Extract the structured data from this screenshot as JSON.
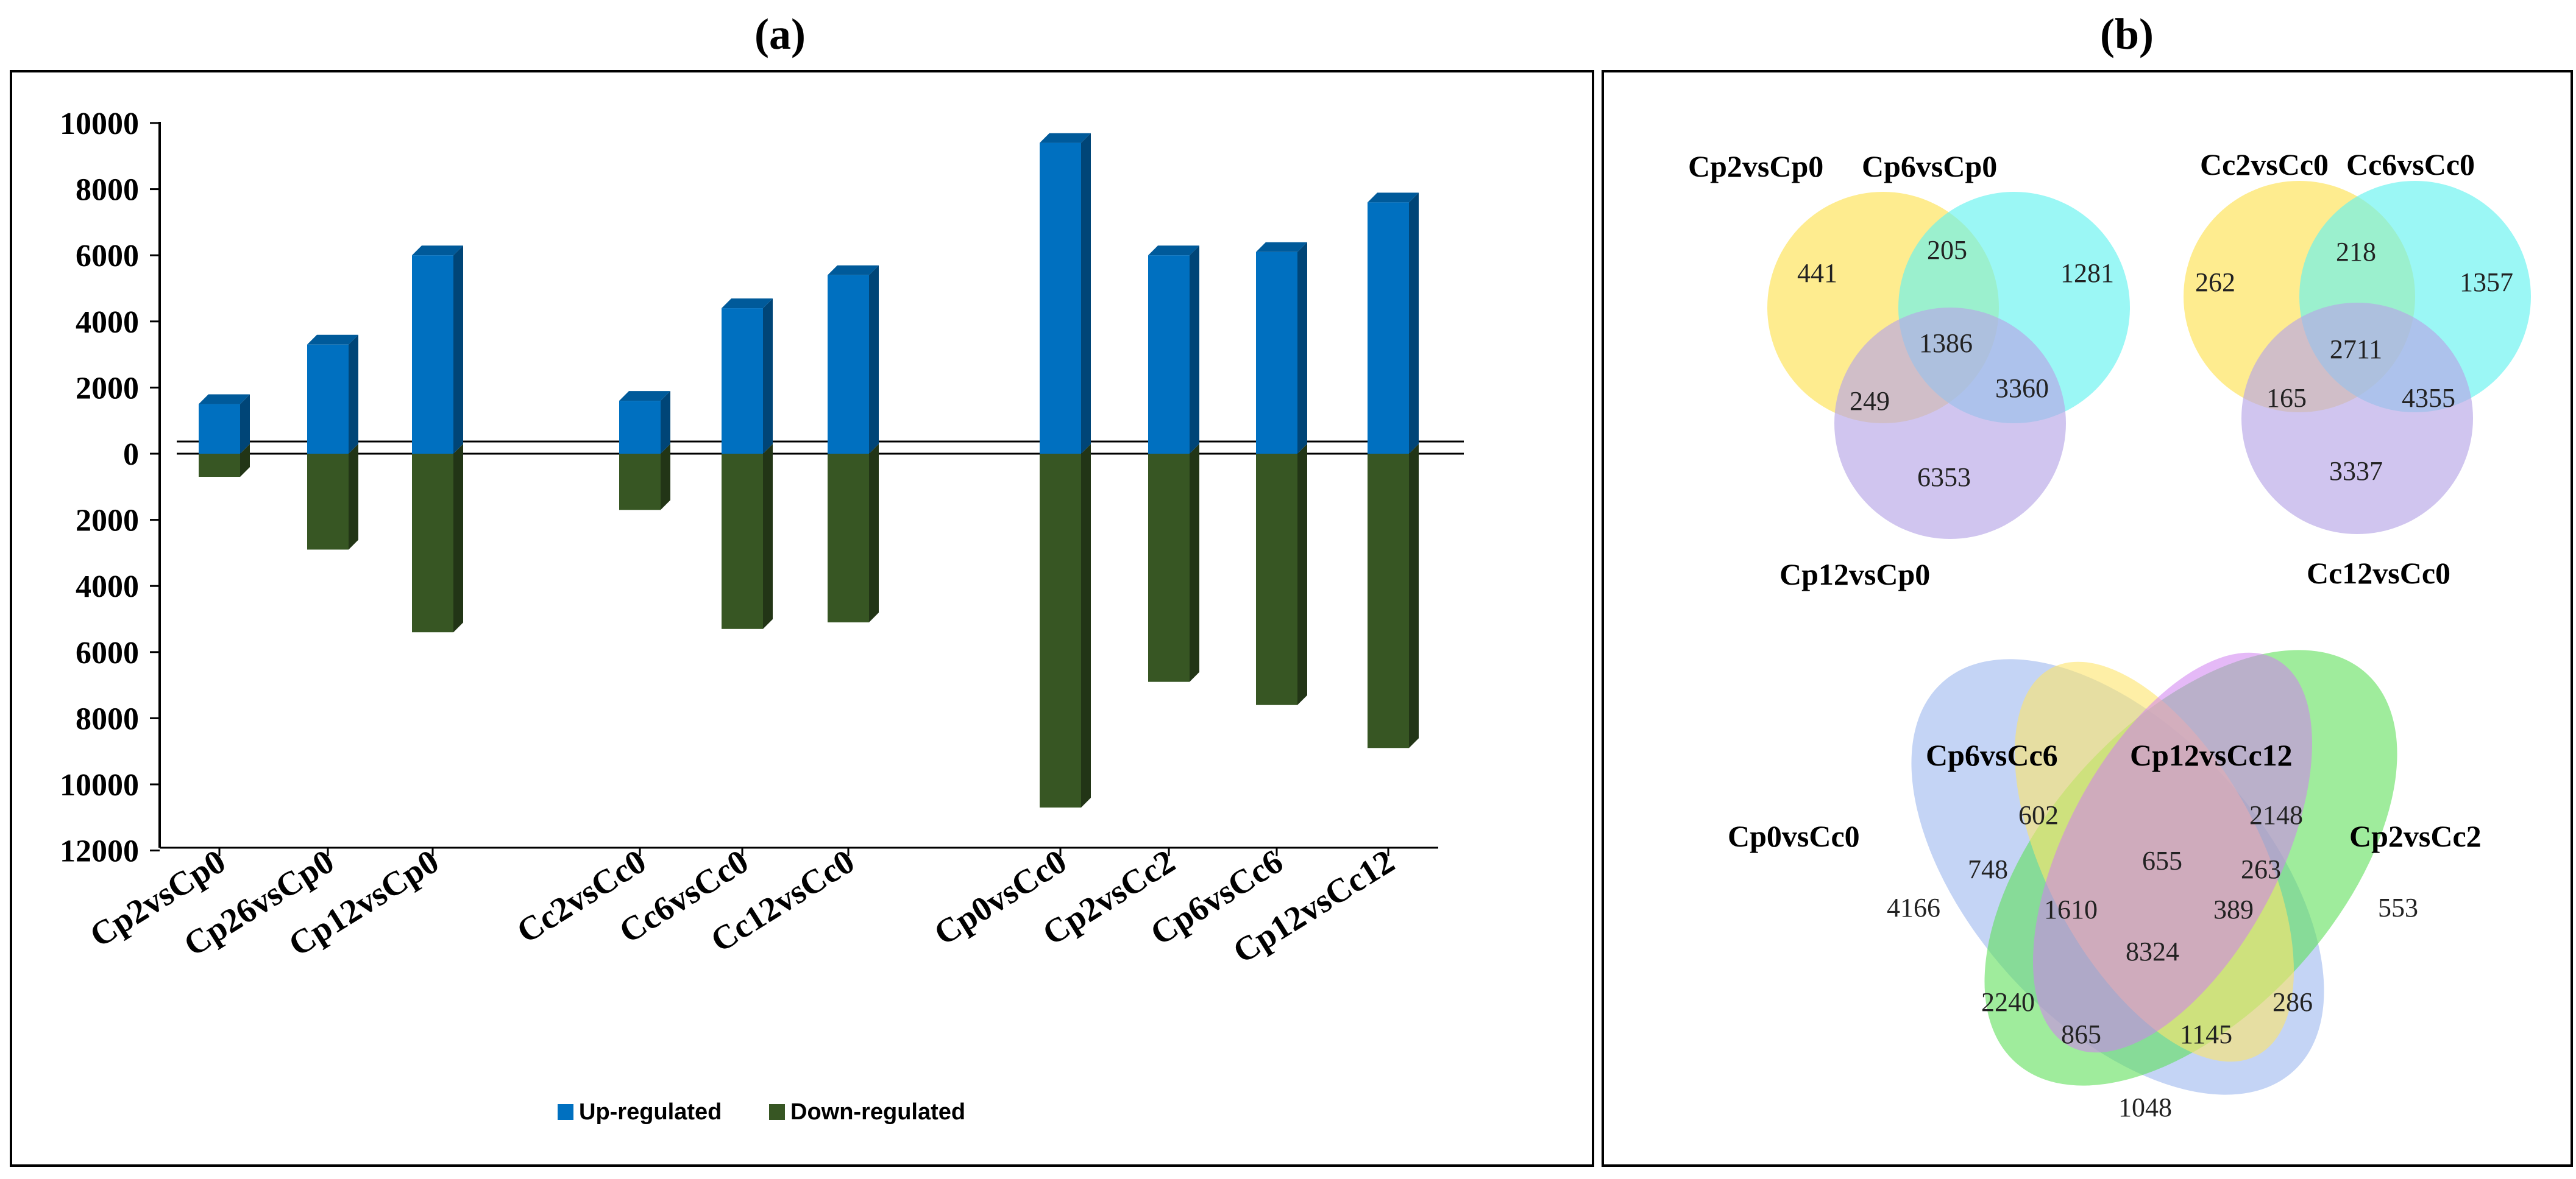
{
  "panel_a": {
    "label": "(a)"
  },
  "panel_b": {
    "label": "(b)"
  },
  "chart_data": {
    "type": "bar",
    "title": "",
    "xlabel": "",
    "ylabel": "",
    "ylim": [
      -12000,
      10000
    ],
    "y_ticks": [
      10000,
      8000,
      6000,
      4000,
      2000,
      0,
      -2000,
      -4000,
      -6000,
      -8000,
      -10000,
      -12000
    ],
    "y_tick_labels": [
      "10000",
      "8000",
      "6000",
      "4000",
      "2000",
      "0",
      "2000",
      "4000",
      "6000",
      "8000",
      "10000",
      "12000"
    ],
    "categories": [
      "Cp2vsCp0",
      "Cp26vsCp0",
      "Cp12vsCp0",
      "Cc2vsCc0",
      "Cc6vsCc0",
      "Cc12vsCc0",
      "Cp0vsCc0",
      "Cp2vsCc2",
      "Cp6vsCc6",
      "Cp12vsCc12"
    ],
    "groups": [
      [
        0,
        1,
        2
      ],
      [
        3,
        4,
        5
      ],
      [
        6,
        7,
        8,
        9
      ]
    ],
    "series": [
      {
        "name": "Up-regulated",
        "color": "#0070c0",
        "values": [
          1500,
          3300,
          6000,
          1600,
          4400,
          5400,
          9400,
          6000,
          6100,
          7600
        ]
      },
      {
        "name": "Down-regulated",
        "color": "#375623",
        "values": [
          -700,
          -2900,
          -5400,
          -1700,
          -5300,
          -5100,
          -10700,
          -6900,
          -7600,
          -8900
        ]
      }
    ],
    "legend_position": "bottom-center",
    "grid": false
  },
  "venn": [
    {
      "sets": [
        "Cp2vsCp0",
        "Cp6vsCp0",
        "Cp12vsCp0"
      ],
      "colors": [
        "#fde56a",
        "#66f2f0",
        "#b7a6e6"
      ],
      "values": [
        "441",
        "205",
        "1281",
        "1386",
        "249",
        "3360",
        "6353"
      ]
    },
    {
      "sets": [
        "Cc2vsCc0",
        "Cc6vsCc0",
        "Cc12vsCc0"
      ],
      "colors": [
        "#fde56a",
        "#66f2f0",
        "#b7a6e6"
      ],
      "values": [
        "262",
        "218",
        "1357",
        "2711",
        "165",
        "4355",
        "3337"
      ]
    },
    {
      "sets": [
        "Cp6vsCc6",
        "Cp12vsCc12",
        "Cp0vsCc0",
        "Cp2vsCc2"
      ],
      "colors": [
        "#fde56a",
        "#cf7ff0",
        "#9db8ef",
        "#5fe05a"
      ],
      "values": [
        "602",
        "2148",
        "4166",
        "553",
        "748",
        "655",
        "263",
        "1610",
        "389",
        "8324",
        "2240",
        "286",
        "865",
        "1145",
        "1048"
      ]
    }
  ]
}
